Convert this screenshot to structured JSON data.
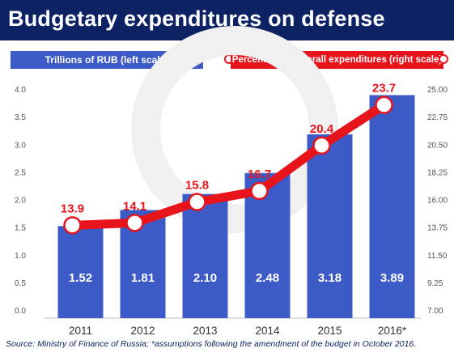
{
  "title": "Budgetary expenditures on defense",
  "legend": {
    "left_series": "Trillions of RUB (left scale)",
    "right_series": "Percentage of overall expenditures (right scale)"
  },
  "source": "Source: Ministry of Finance of Russia; *assumptions following the amendment of the budget in October 2016.",
  "colors": {
    "header_bg": "#0c2262",
    "bar": "#3d5bc7",
    "line": "#e8141c",
    "label_red": "#e8141c",
    "axis_text": "#555555"
  },
  "chart_data": {
    "type": "bar",
    "categories": [
      "2011",
      "2012",
      "2013",
      "2014",
      "2015",
      "2016*"
    ],
    "series": [
      {
        "name": "Trillions of RUB (left scale)",
        "type": "bar",
        "axis": "left",
        "values": [
          1.52,
          1.81,
          2.1,
          2.48,
          3.18,
          3.89
        ],
        "labels": [
          "1.52",
          "1.81",
          "2.10",
          "2.48",
          "3.18",
          "3.89"
        ]
      },
      {
        "name": "Percentage of overall expenditures (right scale)",
        "type": "line",
        "axis": "right",
        "values": [
          13.9,
          14.1,
          15.8,
          16.7,
          20.4,
          23.7
        ],
        "labels": [
          "13.9",
          "14.1",
          "15.8",
          "16.7",
          "20.4",
          "23.7"
        ]
      }
    ],
    "left_axis": {
      "ylim": [
        0,
        4.0
      ],
      "ticks": [
        "0.0",
        "0.5",
        "1.0",
        "1.5",
        "2.0",
        "2.5",
        "3.0",
        "3.5",
        "4.0"
      ]
    },
    "right_axis": {
      "ylim": [
        7.0,
        25.0
      ],
      "ticks": [
        "7.00",
        "9.25",
        "11.50",
        "13.75",
        "16.00",
        "18.25",
        "20.50",
        "22.75",
        "25.00"
      ]
    },
    "grid": false,
    "legend_position": "top"
  }
}
